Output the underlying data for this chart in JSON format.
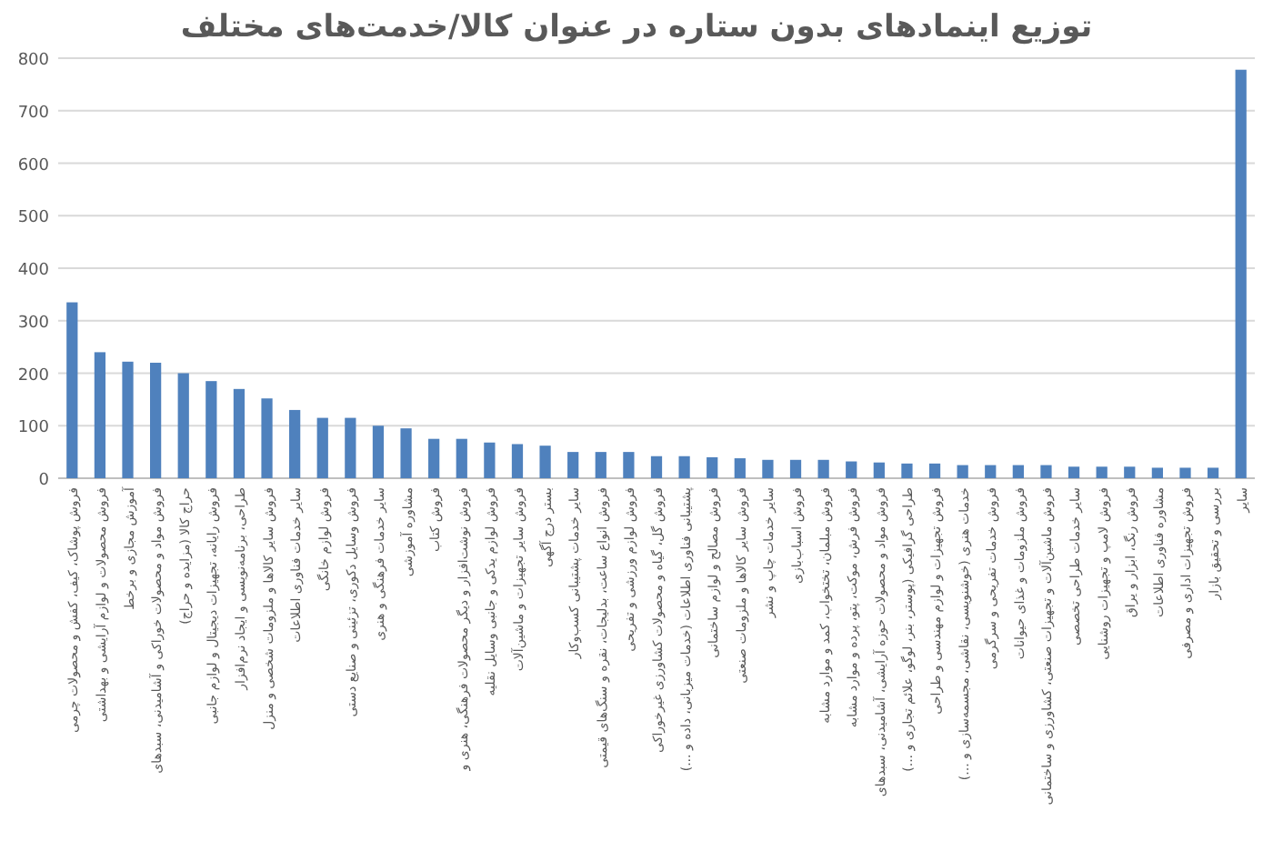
{
  "chart_data": {
    "type": "bar",
    "title": "توزیع اینمادهای بدون ستاره در عنوان کالا/خدمت‌های مختلف",
    "categories": [
      "فروش پوشاک، کیف، کفش و محصولات چرمی",
      "فروش محصولات و لوازم آرایشی و بهداشتی",
      "آموزش مجازی و برخط",
      "فروش مواد و محصولات خوراکی و آشامیدنی، سبدهای",
      "حراج کالا (مزایده و حراج)",
      "فروش رایانه، تجهیزات دیجیتال و لوازم جانبی",
      "طراحی، برنامه‌نویسی و ایجاد نرم‌افزار",
      "فروش سایر کالاها و ملزومات شخصی و منزل",
      "سایر خدمات فناوری اطلاعات",
      "فروش لوازم خانگی",
      "فروش وسایل دکوری، تزئینی و صنایع دستی",
      "سایر خدمات فرهنگی و هنری",
      "مشاوره آموزشی",
      "فروش کتاب",
      "فروش نوشت‌افزار و دیگر محصولات فرهنگی، هنری و",
      "فروش لوازم یدکی و جانبی وسایل نقلیه",
      "فروش سایر تجهیزات و ماشین‌آلات",
      "بستر درج آگهی",
      "سایر خدمات پشتیبانی کسب‌وکار",
      "فروش انواع ساعت، بدلیجات، نقره و سنگ‌های قیمتی",
      "فروش لوازم ورزشی و تفریحی",
      "فروش گل، گیاه و محصولات کشاورزی غیرخوراکی",
      "پشتیبانی فناوری اطلاعات (خدمات میزبانی، داده و ...)",
      "فروش مصالح و لوازم ساختمانی",
      "فروش سایر کالاها و ملزومات صنعتی",
      "سایر خدمات چاپ و نشر",
      "فروش اسباب‌بازی",
      "فروش مبلمان، تختخواب، کمد و موارد مشابه",
      "فروش فرش، موکت، پتو، پرده و موارد مشابه",
      "فروش مواد و محصولات حوزه آرایشی، آشامیدنی، سبدهای",
      "طراحی گرافیکی (پوستر، بنر، لوگو، علائم تجاری و ...)",
      "فروش تجهیزات و لوازم مهندسی و طراحی",
      "خدمات هنری (خوشنویسی، نقاشی، مجسمه‌سازی و ...)",
      "فروش خدمات تفریحی و سرگرمی",
      "فروش ملزومات و غذای حیوانات",
      "فروش ماشین‌آلات و تجهیزات صنعتی، کشاورزی و ساختمانی",
      "سایر خدمات طراحی تخصصی",
      "فروش لامپ و تجهیزات روشنایی",
      "فروش رنگ، ابزار و یراق",
      "مشاوره فناوری اطلاعات",
      "فروش تجهیزات اداری و مصرفی",
      "بررسی و تحقیق بازار",
      "سایر"
    ],
    "values": [
      335,
      240,
      222,
      220,
      200,
      185,
      170,
      152,
      130,
      115,
      115,
      100,
      95,
      75,
      75,
      68,
      65,
      62,
      50,
      50,
      50,
      42,
      42,
      40,
      38,
      35,
      35,
      35,
      32,
      30,
      28,
      28,
      25,
      25,
      25,
      25,
      22,
      22,
      22,
      20,
      20,
      20,
      778
    ],
    "color": "#4f81bd",
    "ylim": [
      0,
      800
    ],
    "yticks": [
      0,
      100,
      200,
      300,
      400,
      500,
      600,
      700,
      800
    ],
    "grid": "y"
  }
}
